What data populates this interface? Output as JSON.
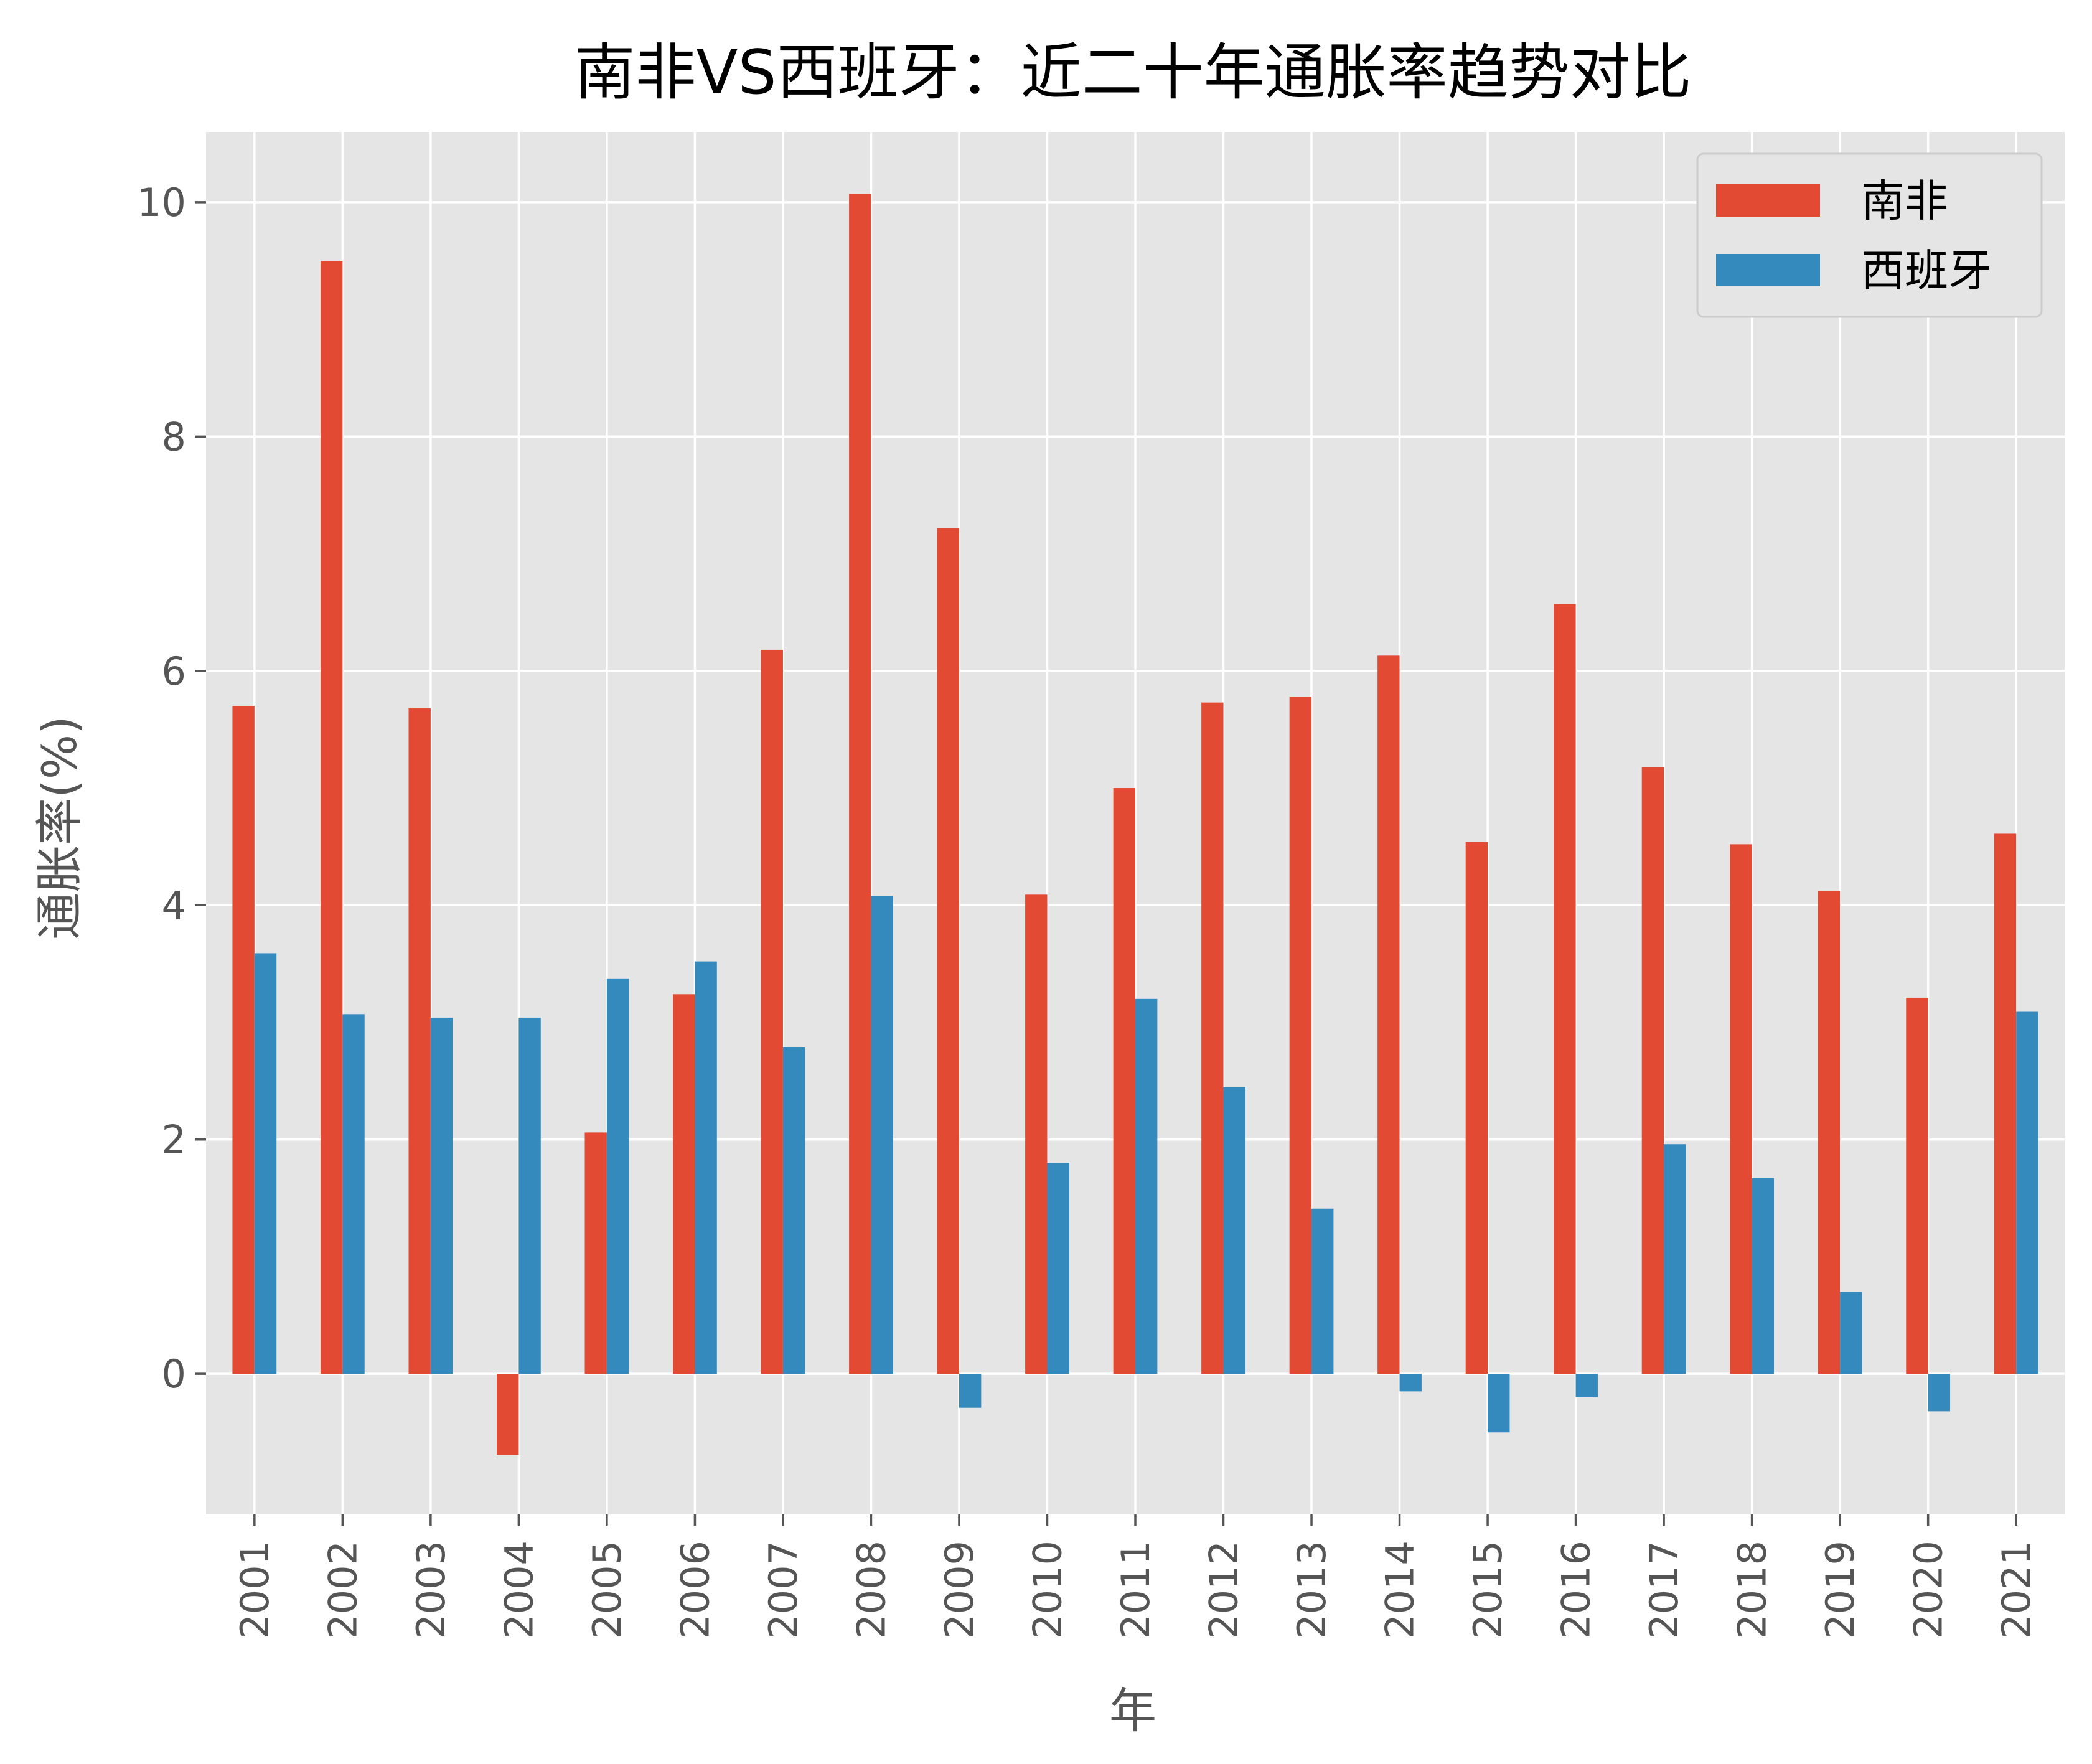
{
  "chart_data": {
    "type": "bar",
    "title": "南非VS西班牙：近二十年通胀率趋势对比",
    "xlabel": "年",
    "ylabel": "通胀率(%)",
    "categories": [
      "2001",
      "2002",
      "2003",
      "2004",
      "2005",
      "2006",
      "2007",
      "2008",
      "2009",
      "2010",
      "2011",
      "2012",
      "2013",
      "2014",
      "2015",
      "2016",
      "2017",
      "2018",
      "2019",
      "2020",
      "2021"
    ],
    "series": [
      {
        "name": "南非",
        "color": "#E24A33",
        "values": [
          5.7,
          9.5,
          5.68,
          -0.69,
          2.06,
          3.24,
          6.18,
          10.07,
          7.22,
          4.09,
          5.0,
          5.73,
          5.78,
          6.13,
          4.54,
          6.57,
          5.18,
          4.52,
          4.12,
          3.21,
          4.61
        ]
      },
      {
        "name": "西班牙",
        "color": "#348ABD",
        "values": [
          3.59,
          3.07,
          3.04,
          3.04,
          3.37,
          3.52,
          2.79,
          4.08,
          -0.29,
          1.8,
          3.2,
          2.45,
          1.41,
          -0.15,
          -0.5,
          -0.2,
          1.96,
          1.67,
          0.7,
          -0.32,
          3.09
        ]
      }
    ],
    "yticks": [
      0,
      2,
      4,
      6,
      8,
      10
    ],
    "ylim": [
      -1.2,
      10.6
    ],
    "grid": true,
    "legend_position": "top-right",
    "colors": {
      "background": "#E5E5E5",
      "grid": "#FFFFFF"
    }
  }
}
